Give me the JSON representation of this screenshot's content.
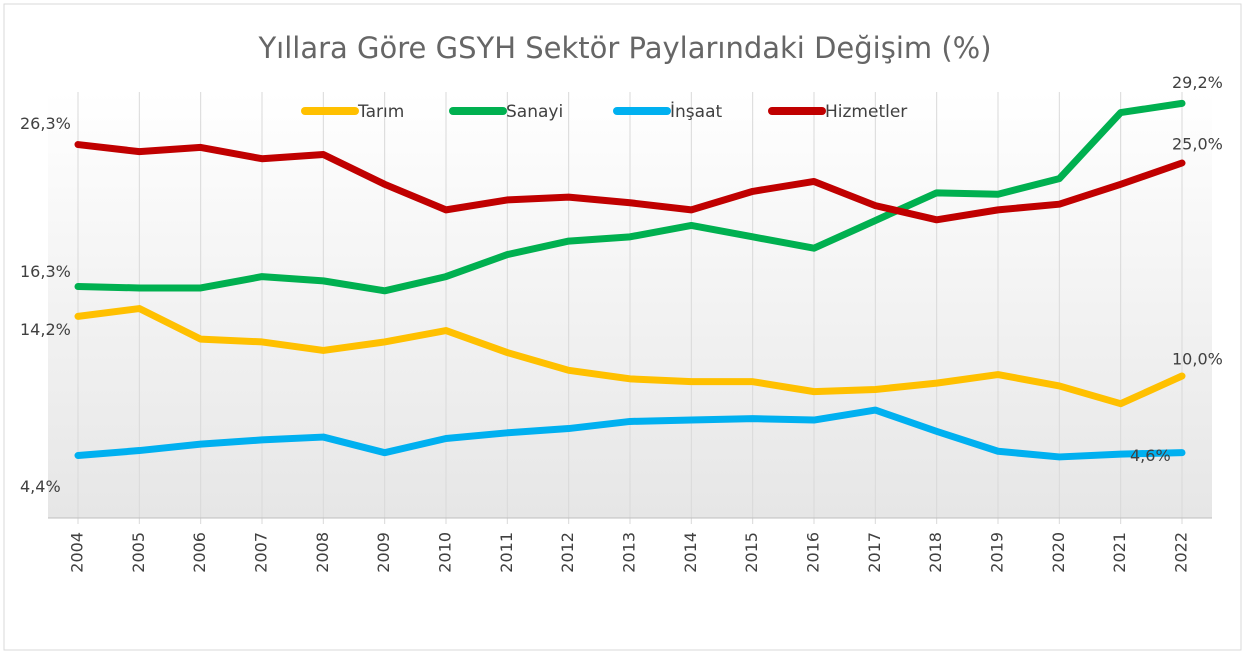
{
  "chart_data": {
    "type": "line",
    "title": "Yıllara Göre GSYH Sektör Paylarındaki Değişim (%)",
    "categories": [
      "2004",
      "2005",
      "2006",
      "2007",
      "2008",
      "2009",
      "2010",
      "2011",
      "2012",
      "2013",
      "2014",
      "2015",
      "2016",
      "2017",
      "2018",
      "2019",
      "2020",
      "2021",
      "2022"
    ],
    "ylim": [
      0,
      30
    ],
    "grid": true,
    "legend": "top",
    "series": [
      {
        "name": "Tarım",
        "color": "#ffc000",
        "values": [
          14.2,
          14.75,
          12.6,
          12.4,
          11.8,
          12.4,
          13.2,
          11.65,
          10.4,
          9.8,
          9.6,
          9.6,
          8.9,
          9.05,
          9.5,
          10.1,
          9.3,
          8.05,
          10.0
        ],
        "value_labels": [
          "14,2%",
          null,
          null,
          null,
          null,
          null,
          null,
          null,
          null,
          null,
          null,
          null,
          null,
          null,
          null,
          null,
          null,
          null,
          "10,0%"
        ]
      },
      {
        "name": "Sanayi",
        "color": "#00b050",
        "values": [
          16.3,
          16.2,
          16.2,
          17.0,
          16.7,
          16.0,
          17.0,
          18.55,
          19.5,
          19.8,
          20.6,
          19.8,
          19.0,
          20.95,
          22.9,
          22.8,
          23.9,
          28.55,
          29.2
        ],
        "value_labels": [
          "16,3%",
          null,
          null,
          null,
          null,
          null,
          null,
          null,
          null,
          null,
          null,
          null,
          null,
          null,
          null,
          null,
          null,
          null,
          "29,2%"
        ]
      },
      {
        "name": "İnşaat",
        "color": "#00b0f0",
        "values": [
          4.4,
          4.75,
          5.2,
          5.5,
          5.7,
          4.6,
          5.6,
          6.0,
          6.3,
          6.8,
          6.9,
          7.0,
          6.9,
          7.6,
          6.1,
          4.7,
          4.3,
          4.5,
          4.6
        ],
        "value_labels": [
          "4,4%",
          null,
          null,
          null,
          null,
          null,
          null,
          null,
          null,
          null,
          null,
          null,
          null,
          null,
          null,
          null,
          null,
          null,
          "4,6%"
        ]
      },
      {
        "name": "Hizmetler",
        "color": "#c00000",
        "values": [
          26.3,
          25.8,
          26.1,
          25.3,
          25.6,
          23.5,
          21.7,
          22.4,
          22.6,
          22.2,
          21.7,
          23.0,
          23.7,
          22.0,
          21.0,
          21.7,
          22.1,
          23.5,
          25.0
        ],
        "value_labels": [
          "26,3%",
          null,
          null,
          null,
          null,
          null,
          null,
          null,
          null,
          null,
          null,
          null,
          null,
          null,
          null,
          null,
          null,
          null,
          "25,0%"
        ]
      }
    ]
  }
}
